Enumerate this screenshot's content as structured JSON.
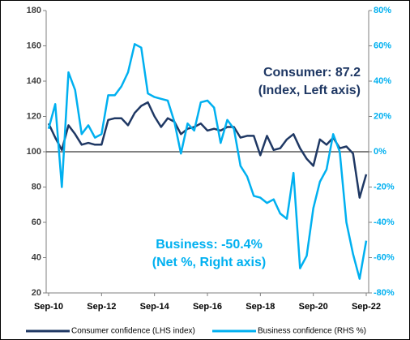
{
  "chart_data": {
    "type": "line",
    "categories": [
      "Sep-10",
      null,
      null,
      null,
      null,
      null,
      null,
      null,
      "Sep-12",
      null,
      null,
      null,
      null,
      null,
      null,
      null,
      "Sep-14",
      null,
      null,
      null,
      null,
      null,
      null,
      null,
      "Sep-16",
      null,
      null,
      null,
      null,
      null,
      null,
      null,
      "Sep-18",
      null,
      null,
      null,
      null,
      null,
      null,
      null,
      "Sep-20",
      null,
      null,
      null,
      null,
      null,
      null,
      null,
      "Sep-22"
    ],
    "series": [
      {
        "name": "Consumer confidence (LHS index)",
        "color": "#1f3864",
        "axis": "y",
        "values": [
          116,
          108,
          101,
          115,
          110,
          104,
          105,
          104,
          104,
          118,
          119,
          119,
          115,
          122,
          126,
          128,
          120,
          114,
          119,
          117,
          110,
          113,
          114,
          116,
          112,
          113,
          112,
          114,
          114,
          108,
          109,
          109,
          98,
          109,
          101,
          102,
          107,
          110,
          102,
          96,
          92,
          107,
          104,
          108,
          102,
          103,
          99,
          74,
          87.2
        ]
      },
      {
        "name": "Business confidence (RHS %)",
        "color": "#00b0f0",
        "axis": "y2",
        "values": [
          13,
          27,
          -20,
          45,
          35,
          10,
          15,
          8,
          10,
          32,
          32,
          37,
          45,
          61,
          59,
          33,
          31,
          30,
          29,
          17,
          -1,
          16,
          12,
          28,
          29,
          25,
          5,
          18,
          13,
          -8,
          -14,
          -25,
          -26,
          -29,
          -27,
          -35,
          -38,
          -12,
          -66,
          -59,
          -32,
          -17,
          -10,
          10,
          0,
          -40,
          -58,
          -72,
          -50.4
        ]
      }
    ],
    "ylim": [
      20,
      180
    ],
    "yticks": [
      20,
      40,
      60,
      80,
      100,
      120,
      140,
      160,
      180
    ],
    "y2lim": [
      -80,
      80
    ],
    "y2ticks": [
      {
        "value": -80,
        "label": "-80%"
      },
      {
        "value": -60,
        "label": "-60%"
      },
      {
        "value": -40,
        "label": "-40%"
      },
      {
        "value": -20,
        "label": "-20%"
      },
      {
        "value": 0,
        "label": "0%"
      },
      {
        "value": 20,
        "label": "20%"
      },
      {
        "value": 40,
        "label": "40%"
      },
      {
        "value": 60,
        "label": "60%"
      },
      {
        "value": 80,
        "label": "80%"
      }
    ],
    "annotations": [
      {
        "lines": [
          "Consumer: 87.2",
          "(Index, Left axis)"
        ],
        "color": "#1f3864"
      },
      {
        "lines": [
          "Business: -50.4%",
          "(Net %, Right axis)"
        ],
        "color": "#00b0f0"
      }
    ]
  }
}
